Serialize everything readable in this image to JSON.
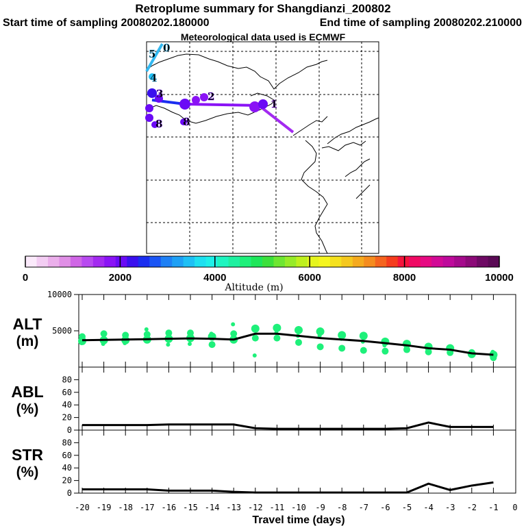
{
  "header": {
    "title": "Retroplume summary for Shangdianzi_200802",
    "start": "Start time of sampling 20080202.180000",
    "end": "End time of sampling 20080202.210000",
    "met": "Meteorological data used is ECMWF"
  },
  "colorbar": {
    "label": "Altitude (m)",
    "ticks": [
      "0",
      "2000",
      "4000",
      "6000",
      "8000",
      "10000"
    ],
    "colors": [
      "#fbeafb",
      "#f3cdf3",
      "#ebafeb",
      "#e08fe6",
      "#d066e6",
      "#b84af0",
      "#a32af0",
      "#8a13f5",
      "#6a0af5",
      "#3a10ee",
      "#1a2ef0",
      "#1a55f5",
      "#1e80f5",
      "#1ea0f5",
      "#1ec0f5",
      "#1ee0f0",
      "#1ef0e8",
      "#1ef5c0",
      "#1ef0a0",
      "#1ef07a",
      "#1ee65a",
      "#3ce03c",
      "#6ee632",
      "#96eb28",
      "#bef01e",
      "#e6f51e",
      "#f5f51e",
      "#f5e11e",
      "#f5c81e",
      "#f5aa1e",
      "#f58c1e",
      "#f5641e",
      "#f53c1e",
      "#f5143c",
      "#f00a64",
      "#e60a82",
      "#d20a96",
      "#be0a9b",
      "#a50a8c",
      "#8c0a78",
      "#6e0a64",
      "#5a0a55"
    ]
  },
  "map": {
    "trajectory": [
      {
        "color": "#32b8f0",
        "points": [
          [
            237,
            64
          ],
          [
            214,
            104
          ]
        ]
      },
      {
        "color": "#1a2ef0",
        "points": [
          [
            222,
            146
          ],
          [
            270,
            152
          ]
        ]
      },
      {
        "color": "#8a13f5",
        "points": [
          [
            270,
            152
          ],
          [
            378,
            154
          ]
        ]
      },
      {
        "color": "#a32af0",
        "points": [
          [
            378,
            154
          ],
          [
            428,
            193
          ]
        ]
      }
    ],
    "labels": [
      {
        "text": "0",
        "x": 238,
        "y": 75,
        "color": "#32b8f0"
      },
      {
        "text": "5",
        "x": 217,
        "y": 84,
        "color": "#32b8f0"
      },
      {
        "text": "4",
        "x": 219,
        "y": 119,
        "color": "#32b8f0"
      },
      {
        "text": "3",
        "x": 228,
        "y": 142,
        "color": "#6a0af5"
      },
      {
        "text": "2",
        "x": 303,
        "y": 146,
        "color": "#6a0af5"
      },
      {
        "text": "1",
        "x": 395,
        "y": 157,
        "color": "#8a13f5"
      },
      {
        "text": "8",
        "x": 227,
        "y": 186,
        "color": "#6a0af5"
      },
      {
        "text": "8",
        "x": 267,
        "y": 183,
        "color": "#6a0af5"
      }
    ]
  },
  "chart_data": [
    {
      "type": "line",
      "panel": "ALT",
      "ylabel_top": "ALT",
      "ylabel_bottom": "(m)",
      "ylim": [
        0,
        10000
      ],
      "yticks": [
        "10000",
        "5000"
      ],
      "x": [
        -20,
        -19,
        -18,
        -17,
        -16,
        -15,
        -14,
        -13,
        -12,
        -11,
        -10,
        -9,
        -8,
        -7,
        -6,
        -5,
        -4,
        -3,
        -2,
        -1
      ],
      "series": [
        {
          "name": "mean altitude",
          "values": [
            3700,
            3750,
            3800,
            3850,
            3900,
            3950,
            3900,
            3800,
            4600,
            4600,
            4300,
            4000,
            3800,
            3600,
            3300,
            3000,
            2600,
            2400,
            1900,
            1700
          ]
        }
      ],
      "scatter": [
        {
          "x": -20,
          "values": [
            3600,
            4200,
            3300
          ]
        },
        {
          "x": -19,
          "values": [
            3700,
            4600,
            3200
          ]
        },
        {
          "x": -18,
          "values": [
            3700,
            4400,
            3300
          ]
        },
        {
          "x": -17,
          "values": [
            3800,
            4500,
            5200
          ]
        },
        {
          "x": -16,
          "values": [
            3900,
            4700,
            3100
          ]
        },
        {
          "x": -15,
          "values": [
            4000,
            4700,
            3200
          ]
        },
        {
          "x": -14,
          "values": [
            4200,
            3100,
            4600
          ]
        },
        {
          "x": -13,
          "values": [
            3800,
            4600,
            5900
          ]
        },
        {
          "x": -12,
          "values": [
            5300,
            4000,
            1600
          ]
        },
        {
          "x": -11,
          "values": [
            5400,
            4000,
            4700
          ]
        },
        {
          "x": -10,
          "values": [
            5100,
            3400,
            4300
          ]
        },
        {
          "x": -9,
          "values": [
            4900,
            2800,
            4300
          ]
        },
        {
          "x": -8,
          "values": [
            4400,
            2600,
            3900
          ]
        },
        {
          "x": -7,
          "values": [
            4300,
            2300,
            3500
          ]
        },
        {
          "x": -6,
          "values": [
            3500,
            2200,
            3000
          ]
        },
        {
          "x": -5,
          "values": [
            3200,
            2400,
            2700
          ]
        },
        {
          "x": -4,
          "values": [
            2800,
            2100,
            2500
          ]
        },
        {
          "x": -3,
          "values": [
            2600,
            2000,
            2300
          ]
        },
        {
          "x": -2,
          "values": [
            1800,
            2000
          ]
        },
        {
          "x": -1,
          "values": [
            1700,
            1300,
            2100
          ]
        }
      ]
    },
    {
      "type": "line",
      "panel": "ABL",
      "ylabel_top": "ABL",
      "ylabel_bottom": "(%)",
      "ylim": [
        0,
        100
      ],
      "yticks": [
        "0",
        "20",
        "40",
        "60",
        "80"
      ],
      "x": [
        -20,
        -19,
        -18,
        -17,
        -16,
        -15,
        -14,
        -13,
        -12,
        -11,
        -10,
        -9,
        -8,
        -7,
        -6,
        -5,
        -4,
        -3,
        -2,
        -1
      ],
      "series": [
        {
          "name": "ABL fraction",
          "values": [
            8,
            8,
            8,
            8,
            9,
            9,
            9,
            9,
            3,
            2,
            2,
            2,
            2,
            2,
            2,
            3,
            12,
            5,
            5,
            5
          ]
        }
      ]
    },
    {
      "type": "line",
      "panel": "STR",
      "ylabel_top": "STR",
      "ylabel_bottom": "(%)",
      "ylim": [
        0,
        100
      ],
      "yticks": [
        "0",
        "20",
        "40",
        "60",
        "80"
      ],
      "xlabel": "Travel time (days)",
      "xticks": [
        "-20",
        "-19",
        "-18",
        "-17",
        "-16",
        "-15",
        "-14",
        "-13",
        "-12",
        "-11",
        "-10",
        "-9",
        "-8",
        "-7",
        "-6",
        "-5",
        "-4",
        "-3",
        "-2",
        "-1",
        "0"
      ],
      "x": [
        -20,
        -19,
        -18,
        -17,
        -16,
        -15,
        -14,
        -13,
        -12,
        -11,
        -10,
        -9,
        -8,
        -7,
        -6,
        -5,
        -4,
        -3,
        -2,
        -1
      ],
      "series": [
        {
          "name": "STR fraction",
          "values": [
            6,
            6,
            6,
            6,
            4,
            4,
            4,
            2,
            1,
            1,
            1,
            1,
            1,
            1,
            1,
            1,
            15,
            5,
            12,
            17
          ]
        }
      ]
    }
  ]
}
